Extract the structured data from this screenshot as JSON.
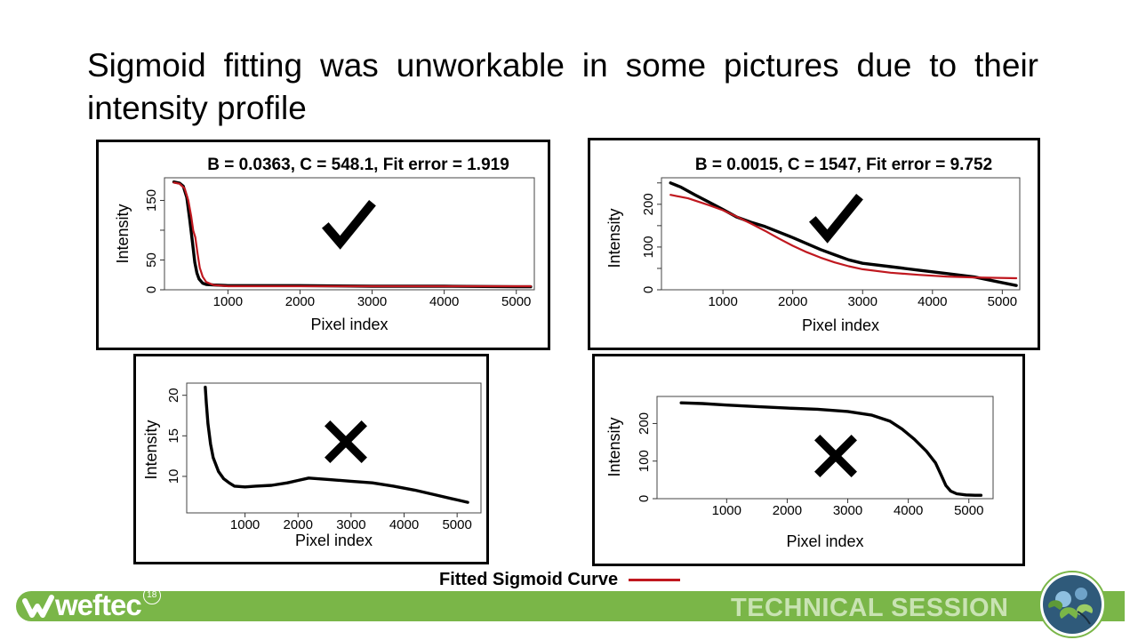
{
  "slide": {
    "title": "Sigmoid fitting was unworkable in some pictures due to their intensity profile"
  },
  "legend": {
    "label": "Fitted Sigmoid Curve",
    "color": "#c0181f"
  },
  "footer": {
    "logo_text": "weftec",
    "logo_year": "18",
    "session_label": "TECHNICAL SESSION",
    "bar_color": "#7ab648",
    "logo_icon": "weftec-logo-icon",
    "badge_icon": "water-lily-badge-icon"
  },
  "chart_data": [
    {
      "type": "line",
      "title": "B = 0.0363, C = 548.1, Fit error = 1.919",
      "xlabel": "Pixel index",
      "ylabel": "Intensity",
      "xlim": [
        120,
        5250
      ],
      "ylim": [
        0,
        188
      ],
      "xticks": [
        1000,
        2000,
        3000,
        4000,
        5000
      ],
      "yticks": [
        0,
        50,
        100,
        150
      ],
      "ytick_labels": [
        "0",
        "50",
        "",
        "150"
      ],
      "mark": "check",
      "series": [
        {
          "role": "observed",
          "color": "#000000",
          "x": [
            250,
            330,
            380,
            430,
            470,
            510,
            540,
            570,
            600,
            650,
            700,
            800,
            1000,
            1500,
            2000,
            3000,
            4000,
            5000,
            5200
          ],
          "y": [
            181,
            179,
            174,
            155,
            118,
            78,
            46,
            28,
            18,
            11,
            9,
            8,
            7,
            7,
            7,
            6,
            6,
            5,
            5
          ]
        },
        {
          "role": "fitted",
          "color": "#c0181f",
          "x": [
            250,
            330,
            400,
            450,
            490,
            520,
            548,
            580,
            610,
            650,
            700,
            800,
            1000,
            2000,
            3000,
            4000,
            5200
          ],
          "y": [
            180,
            178,
            170,
            150,
            124,
            99,
            88,
            60,
            37,
            22,
            13,
            8,
            6,
            6,
            6,
            6,
            6
          ]
        }
      ]
    },
    {
      "type": "line",
      "title": "B = 0.0015, C = 1547, Fit error = 9.752",
      "xlabel": "Pixel index",
      "ylabel": "Intensity",
      "xlim": [
        120,
        5250
      ],
      "ylim": [
        0,
        262
      ],
      "xticks": [
        1000,
        2000,
        3000,
        4000,
        5000
      ],
      "yticks": [
        0,
        50,
        100,
        150,
        200,
        250
      ],
      "ytick_labels": [
        "0",
        "",
        "100",
        "",
        "200",
        ""
      ],
      "mark": "check",
      "series": [
        {
          "role": "observed",
          "color": "#000000",
          "x": [
            250,
            400,
            600,
            800,
            1000,
            1200,
            1400,
            1600,
            1800,
            2000,
            2200,
            2400,
            2600,
            2800,
            3000,
            3400,
            3800,
            4200,
            4600,
            4900,
            5200
          ],
          "y": [
            250,
            240,
            222,
            205,
            188,
            170,
            158,
            148,
            135,
            122,
            108,
            94,
            82,
            70,
            62,
            54,
            46,
            38,
            30,
            20,
            10
          ]
        },
        {
          "role": "fitted",
          "color": "#c0181f",
          "x": [
            250,
            500,
            800,
            1000,
            1200,
            1400,
            1600,
            1800,
            2000,
            2200,
            2400,
            2600,
            2800,
            3000,
            3400,
            3800,
            4200,
            4600,
            5200
          ],
          "y": [
            222,
            214,
            198,
            186,
            171,
            155,
            138,
            120,
            103,
            88,
            75,
            64,
            55,
            48,
            40,
            35,
            31,
            29,
            27
          ]
        }
      ]
    },
    {
      "type": "line",
      "title": "",
      "xlabel": "Pixel index",
      "ylabel": "Intensity",
      "xlim": [
        -100,
        5450
      ],
      "ylim": [
        5.5,
        21.5
      ],
      "xticks": [
        1000,
        2000,
        3000,
        4000,
        5000
      ],
      "yticks": [
        10,
        15,
        20
      ],
      "ytick_labels": [
        "10",
        "15",
        "20"
      ],
      "mark": "cross",
      "series": [
        {
          "role": "observed",
          "color": "#000000",
          "x": [
            250,
            270,
            300,
            350,
            400,
            500,
            600,
            700,
            800,
            1000,
            1200,
            1500,
            1800,
            2000,
            2200,
            2400,
            2600,
            3000,
            3400,
            3800,
            4200,
            4600,
            5000,
            5200
          ],
          "y": [
            21.0,
            19.0,
            16.5,
            14.0,
            12.3,
            10.6,
            9.7,
            9.2,
            8.8,
            8.7,
            8.8,
            8.9,
            9.2,
            9.5,
            9.8,
            9.7,
            9.6,
            9.4,
            9.2,
            8.8,
            8.3,
            7.7,
            7.1,
            6.8
          ]
        }
      ]
    },
    {
      "type": "line",
      "title": "",
      "xlabel": "Pixel index",
      "ylabel": "Intensity",
      "xlim": [
        -150,
        5400
      ],
      "ylim": [
        0,
        272
      ],
      "xticks": [
        1000,
        2000,
        3000,
        4000,
        5000
      ],
      "yticks": [
        0,
        100,
        200
      ],
      "ytick_labels": [
        "0",
        "100",
        "200"
      ],
      "mark": "cross",
      "series": [
        {
          "role": "observed",
          "color": "#000000",
          "x": [
            250,
            600,
            1000,
            1500,
            2000,
            2500,
            3000,
            3400,
            3700,
            3900,
            4100,
            4300,
            4450,
            4550,
            4620,
            4700,
            4800,
            4950,
            5100,
            5200
          ],
          "y": [
            255,
            253,
            249,
            245,
            241,
            238,
            232,
            222,
            206,
            185,
            158,
            126,
            95,
            60,
            35,
            20,
            13,
            10,
            9,
            9
          ]
        }
      ]
    }
  ]
}
